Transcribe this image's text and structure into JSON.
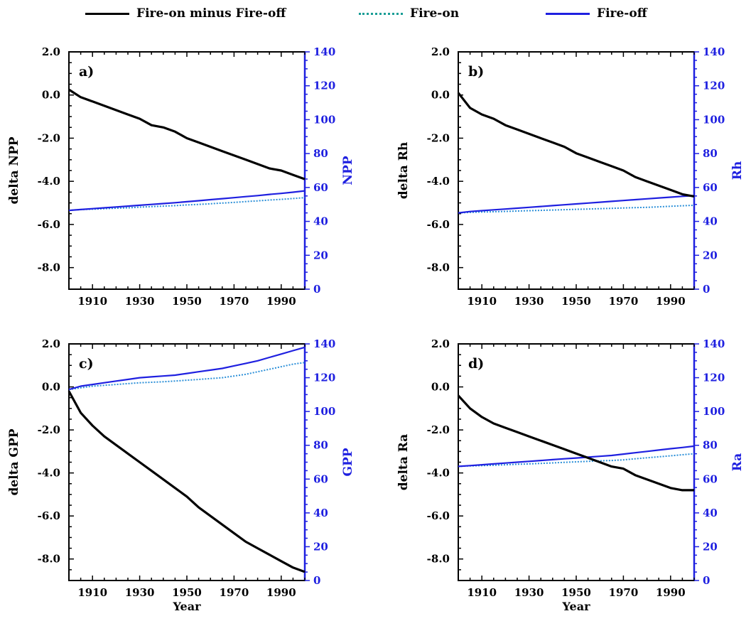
{
  "legend": [
    {
      "label": "Fire-on minus Fire-off",
      "color": "#000000",
      "style": "solid"
    },
    {
      "label": "Fire-on",
      "color": "#1a9e96",
      "style": "dotted"
    },
    {
      "label": "Fire-off",
      "color": "#1f20e0",
      "style": "solid"
    }
  ],
  "colors": {
    "delta": "#000000",
    "fire_on": "#2b8fd8",
    "fire_off": "#1f20e0",
    "right_axis": "#1f20e0"
  },
  "chart_data": [
    {
      "type": "line",
      "panel_label": "a)",
      "xlabel": "",
      "ylabel_left": "delta  NPP",
      "ylabel_right": "NPP",
      "xlim": [
        1900,
        2000
      ],
      "x_ticks": [
        1910,
        1930,
        1950,
        1970,
        1990
      ],
      "ylim_left": [
        -9,
        2
      ],
      "left_ticks": [
        "2.0",
        "0.0",
        "-2.0",
        "-4.0",
        "-6.0",
        "-8.0"
      ],
      "ylim_right": [
        0,
        140
      ],
      "right_ticks": [
        "0",
        "20",
        "40",
        "60",
        "80",
        "100",
        "120",
        "140"
      ],
      "series": [
        {
          "name": "Fire-on minus Fire-off",
          "axis": "left",
          "x": [
            1900,
            1905,
            1910,
            1915,
            1920,
            1925,
            1930,
            1935,
            1940,
            1945,
            1950,
            1955,
            1960,
            1965,
            1970,
            1975,
            1980,
            1985,
            1990,
            1995,
            2000
          ],
          "values": [
            0.25,
            -0.1,
            -0.3,
            -0.5,
            -0.7,
            -0.9,
            -1.1,
            -1.4,
            -1.5,
            -1.7,
            -2.0,
            -2.2,
            -2.4,
            -2.6,
            -2.8,
            -3.0,
            -3.2,
            -3.4,
            -3.5,
            -3.7,
            -3.9
          ]
        },
        {
          "name": "Fire-on",
          "axis": "right",
          "x": [
            1900,
            1905,
            1910,
            1915,
            1920,
            1925,
            1930,
            1935,
            1940,
            1945,
            1950,
            1955,
            1960,
            1965,
            1970,
            1975,
            1980,
            1985,
            1990,
            1995,
            2000
          ],
          "values": [
            46.5,
            47.0,
            47.2,
            47.5,
            47.8,
            48.0,
            48.4,
            48.7,
            49.0,
            49.3,
            49.7,
            50.0,
            50.4,
            50.8,
            51.2,
            51.7,
            52.1,
            52.6,
            53.0,
            53.5,
            54.0
          ]
        },
        {
          "name": "Fire-off",
          "axis": "right",
          "x": [
            1900,
            1905,
            1910,
            1915,
            1920,
            1925,
            1930,
            1935,
            1940,
            1945,
            1950,
            1955,
            1960,
            1965,
            1970,
            1975,
            1980,
            1985,
            1990,
            1995,
            2000
          ],
          "values": [
            46.5,
            47.0,
            47.5,
            48.0,
            48.5,
            49.0,
            49.5,
            50.0,
            50.5,
            51.0,
            51.6,
            52.2,
            52.8,
            53.4,
            54.0,
            54.6,
            55.2,
            55.9,
            56.5,
            57.2,
            58.0
          ]
        }
      ]
    },
    {
      "type": "line",
      "panel_label": "b)",
      "xlabel": "",
      "ylabel_left": "delta  Rh",
      "ylabel_right": "Rh",
      "xlim": [
        1900,
        2000
      ],
      "x_ticks": [
        1910,
        1930,
        1950,
        1970,
        1990
      ],
      "ylim_left": [
        -9,
        2
      ],
      "left_ticks": [
        "2.0",
        "0.0",
        "-2.0",
        "-4.0",
        "-6.0",
        "-8.0"
      ],
      "ylim_right": [
        0,
        140
      ],
      "right_ticks": [
        "0",
        "20",
        "40",
        "60",
        "80",
        "100",
        "120",
        "140"
      ],
      "series": [
        {
          "name": "Fire-on minus Fire-off",
          "axis": "left",
          "x": [
            1900,
            1905,
            1910,
            1915,
            1920,
            1925,
            1930,
            1935,
            1940,
            1945,
            1950,
            1955,
            1960,
            1965,
            1970,
            1975,
            1980,
            1985,
            1990,
            1995,
            2000
          ],
          "values": [
            0.1,
            -0.6,
            -0.9,
            -1.1,
            -1.4,
            -1.6,
            -1.8,
            -2.0,
            -2.2,
            -2.4,
            -2.7,
            -2.9,
            -3.1,
            -3.3,
            -3.5,
            -3.8,
            -4.0,
            -4.2,
            -4.4,
            -4.6,
            -4.7
          ]
        },
        {
          "name": "Fire-on",
          "axis": "right",
          "x": [
            1900,
            1905,
            1910,
            1915,
            1920,
            1925,
            1930,
            1935,
            1940,
            1945,
            1950,
            1955,
            1960,
            1965,
            1970,
            1975,
            1980,
            1985,
            1990,
            1995,
            2000
          ],
          "values": [
            45.0,
            45.3,
            45.5,
            45.7,
            45.9,
            46.1,
            46.3,
            46.5,
            46.7,
            46.9,
            47.1,
            47.3,
            47.5,
            47.7,
            47.9,
            48.1,
            48.3,
            48.6,
            48.9,
            49.2,
            49.5
          ]
        },
        {
          "name": "Fire-off",
          "axis": "right",
          "x": [
            1900,
            1905,
            1910,
            1915,
            1920,
            1925,
            1930,
            1935,
            1940,
            1945,
            1950,
            1955,
            1960,
            1965,
            1970,
            1975,
            1980,
            1985,
            1990,
            1995,
            2000
          ],
          "values": [
            45.0,
            45.8,
            46.3,
            46.8,
            47.3,
            47.8,
            48.3,
            48.8,
            49.3,
            49.8,
            50.3,
            50.8,
            51.3,
            51.8,
            52.3,
            52.8,
            53.3,
            53.8,
            54.3,
            54.8,
            55.2
          ]
        }
      ]
    },
    {
      "type": "line",
      "panel_label": "c)",
      "xlabel": "Year",
      "ylabel_left": "delta  GPP",
      "ylabel_right": "GPP",
      "xlim": [
        1900,
        2000
      ],
      "x_ticks": [
        1910,
        1930,
        1950,
        1970,
        1990
      ],
      "ylim_left": [
        -9,
        2
      ],
      "left_ticks": [
        "2.0",
        "0.0",
        "-2.0",
        "-4.0",
        "-6.0",
        "-8.0"
      ],
      "ylim_right": [
        0,
        140
      ],
      "right_ticks": [
        "0",
        "20",
        "40",
        "60",
        "80",
        "100",
        "120",
        "140"
      ],
      "series": [
        {
          "name": "Fire-on minus Fire-off",
          "axis": "left",
          "x": [
            1900,
            1905,
            1910,
            1915,
            1920,
            1925,
            1930,
            1935,
            1940,
            1945,
            1950,
            1955,
            1960,
            1965,
            1970,
            1975,
            1980,
            1985,
            1990,
            1995,
            2000
          ],
          "values": [
            -0.2,
            -1.2,
            -1.8,
            -2.3,
            -2.7,
            -3.1,
            -3.5,
            -3.9,
            -4.3,
            -4.7,
            -5.1,
            -5.6,
            -6.0,
            -6.4,
            -6.8,
            -7.2,
            -7.5,
            -7.8,
            -8.1,
            -8.4,
            -8.6
          ]
        },
        {
          "name": "Fire-on",
          "axis": "right",
          "x": [
            1900,
            1905,
            1910,
            1915,
            1920,
            1925,
            1930,
            1935,
            1940,
            1945,
            1950,
            1955,
            1960,
            1965,
            1970,
            1975,
            1980,
            1985,
            1990,
            1995,
            2000
          ],
          "values": [
            113,
            114,
            115,
            115.5,
            116,
            116.5,
            117,
            117.3,
            117.6,
            118,
            118.5,
            119,
            119.5,
            120,
            121,
            122,
            123.5,
            125,
            126.5,
            128,
            129
          ]
        },
        {
          "name": "Fire-off",
          "axis": "right",
          "x": [
            1900,
            1905,
            1910,
            1915,
            1920,
            1925,
            1930,
            1935,
            1940,
            1945,
            1950,
            1955,
            1960,
            1965,
            1970,
            1975,
            1980,
            1985,
            1990,
            1995,
            2000
          ],
          "values": [
            113,
            115,
            116,
            117,
            118,
            119,
            120,
            120.5,
            121,
            121.5,
            122.5,
            123.5,
            124.5,
            125.5,
            127,
            128.5,
            130,
            132,
            134,
            136,
            138
          ]
        }
      ]
    },
    {
      "type": "line",
      "panel_label": "d)",
      "xlabel": "Year",
      "ylabel_left": "delta  Ra",
      "ylabel_right": "Ra",
      "xlim": [
        1900,
        2000
      ],
      "x_ticks": [
        1910,
        1930,
        1950,
        1970,
        1990
      ],
      "ylim_left": [
        -9,
        2
      ],
      "left_ticks": [
        "2.0",
        "0.0",
        "-2.0",
        "-4.0",
        "-6.0",
        "-8.0"
      ],
      "ylim_right": [
        0,
        140
      ],
      "right_ticks": [
        "0",
        "20",
        "40",
        "60",
        "80",
        "100",
        "120",
        "140"
      ],
      "series": [
        {
          "name": "Fire-on minus Fire-off",
          "axis": "left",
          "x": [
            1900,
            1905,
            1910,
            1915,
            1920,
            1925,
            1930,
            1935,
            1940,
            1945,
            1950,
            1955,
            1960,
            1965,
            1970,
            1975,
            1980,
            1985,
            1990,
            1995,
            2000
          ],
          "values": [
            -0.4,
            -1.0,
            -1.4,
            -1.7,
            -1.9,
            -2.1,
            -2.3,
            -2.5,
            -2.7,
            -2.9,
            -3.1,
            -3.3,
            -3.5,
            -3.7,
            -3.8,
            -4.1,
            -4.3,
            -4.5,
            -4.7,
            -4.8,
            -4.8
          ]
        },
        {
          "name": "Fire-on",
          "axis": "right",
          "x": [
            1900,
            1905,
            1910,
            1915,
            1920,
            1925,
            1930,
            1935,
            1940,
            1945,
            1950,
            1955,
            1960,
            1965,
            1970,
            1975,
            1980,
            1985,
            1990,
            1995,
            2000
          ],
          "values": [
            67.5,
            67.8,
            68.0,
            68.2,
            68.5,
            68.8,
            69.0,
            69.3,
            69.6,
            69.9,
            70.2,
            70.5,
            70.8,
            71.0,
            71.4,
            72.0,
            72.6,
            73.2,
            73.8,
            74.4,
            75.0
          ]
        },
        {
          "name": "Fire-off",
          "axis": "right",
          "x": [
            1900,
            1905,
            1910,
            1915,
            1920,
            1925,
            1930,
            1935,
            1940,
            1945,
            1950,
            1955,
            1960,
            1965,
            1970,
            1975,
            1980,
            1985,
            1990,
            1995,
            2000
          ],
          "values": [
            67.5,
            68.0,
            68.5,
            69.0,
            69.5,
            70.0,
            70.5,
            71.0,
            71.5,
            72.0,
            72.5,
            73.0,
            73.5,
            74.0,
            74.8,
            75.6,
            76.4,
            77.2,
            78.0,
            78.7,
            79.5
          ]
        }
      ]
    }
  ]
}
